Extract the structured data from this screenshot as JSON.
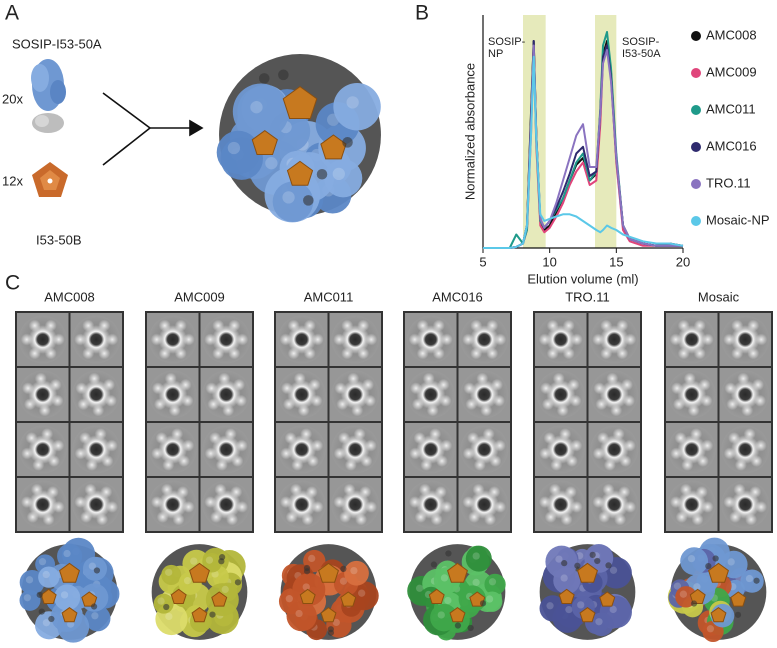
{
  "panel_labels": [
    "A",
    "B",
    "C"
  ],
  "panel_a": {
    "labels": [
      "SOSIP-I53-50A",
      "20x",
      "12x",
      "I53-50B"
    ]
  },
  "chart_data": {
    "type": "line",
    "xlabel": "Elution volume (ml)",
    "ylabel": "Normalized absorbance",
    "x": [
      5,
      6,
      7,
      7.5,
      8,
      8.3,
      8.6,
      8.8,
      9,
      9.3,
      9.6,
      10,
      10.5,
      11,
      11.5,
      12,
      12.5,
      13,
      13.5,
      13.8,
      14,
      14.3,
      14.6,
      15,
      15.5,
      16,
      17,
      18,
      19,
      20
    ],
    "xlim": [
      5,
      20
    ],
    "xticks": [
      5,
      10,
      15,
      20
    ],
    "ylim": [
      0,
      1
    ],
    "shaded_regions": [
      [
        8,
        9.7
      ],
      [
        13.4,
        15
      ]
    ],
    "annotations": [
      [
        "SOSIP-",
        "NP"
      ],
      [
        "SOSIP-",
        "I53-50A"
      ]
    ],
    "legend": "right",
    "series": [
      {
        "name": "AMC008",
        "color": "#111111",
        "values": [
          0,
          0,
          0,
          0.005,
          0.02,
          0.1,
          0.6,
          0.92,
          0.5,
          0.12,
          0.08,
          0.1,
          0.16,
          0.22,
          0.3,
          0.37,
          0.4,
          0.3,
          0.33,
          0.6,
          0.86,
          0.92,
          0.78,
          0.4,
          0.1,
          0.04,
          0.02,
          0.01,
          0.02,
          0.01
        ]
      },
      {
        "name": "AMC009",
        "color": "#e0457b",
        "values": [
          0,
          0,
          0,
          0.005,
          0.02,
          0.08,
          0.5,
          0.9,
          0.45,
          0.1,
          0.07,
          0.09,
          0.14,
          0.2,
          0.28,
          0.34,
          0.38,
          0.28,
          0.3,
          0.55,
          0.84,
          0.9,
          0.76,
          0.38,
          0.08,
          0.03,
          0.01,
          0.01,
          0.01,
          0.01
        ]
      },
      {
        "name": "AMC011",
        "color": "#1f9a8a",
        "values": [
          0,
          0,
          0,
          0.06,
          0.02,
          0.08,
          0.55,
          0.88,
          0.48,
          0.12,
          0.09,
          0.12,
          0.17,
          0.22,
          0.3,
          0.38,
          0.42,
          0.3,
          0.34,
          0.62,
          0.9,
          0.96,
          0.8,
          0.42,
          0.1,
          0.04,
          0.02,
          0.01,
          0.01,
          0.01
        ]
      },
      {
        "name": "AMC016",
        "color": "#2e2a6e",
        "values": [
          0,
          0,
          0,
          0.005,
          0.02,
          0.1,
          0.58,
          0.92,
          0.5,
          0.13,
          0.09,
          0.12,
          0.18,
          0.25,
          0.33,
          0.42,
          0.45,
          0.32,
          0.34,
          0.6,
          0.85,
          0.9,
          0.76,
          0.4,
          0.1,
          0.04,
          0.02,
          0.01,
          0.01,
          0.01
        ]
      },
      {
        "name": "TRO.11",
        "color": "#8a73c0",
        "values": [
          0,
          0,
          0,
          0.005,
          0.02,
          0.1,
          0.55,
          0.9,
          0.5,
          0.13,
          0.09,
          0.12,
          0.2,
          0.3,
          0.4,
          0.5,
          0.55,
          0.36,
          0.36,
          0.6,
          0.82,
          0.88,
          0.74,
          0.4,
          0.1,
          0.04,
          0.02,
          0.01,
          0.01,
          0.01
        ]
      },
      {
        "name": "Mosaic-NP",
        "color": "#5bc8e8",
        "values": [
          0,
          0,
          0,
          0.005,
          0.02,
          0.1,
          0.5,
          0.85,
          0.48,
          0.15,
          0.12,
          0.13,
          0.14,
          0.15,
          0.15,
          0.14,
          0.12,
          0.1,
          0.08,
          0.07,
          0.08,
          0.1,
          0.09,
          0.08,
          0.06,
          0.05,
          0.03,
          0.02,
          0.02,
          0.01
        ]
      }
    ]
  },
  "panel_c": {
    "columns": [
      "AMC008",
      "AMC009",
      "AMC011",
      "AMC016",
      "TRO.11",
      "Mosaic"
    ]
  }
}
